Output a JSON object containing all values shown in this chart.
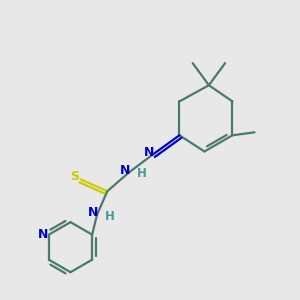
{
  "bg_color": "#e8e8e8",
  "bond_color": "#4a7a6a",
  "nitrogen_color": "#0000cc",
  "sulfur_color": "#cccc00",
  "hydrogen_color": "#4a9a9a",
  "line_width": 1.6,
  "dbo": 0.12,
  "xlim": [
    0,
    10
  ],
  "ylim": [
    0,
    10
  ]
}
